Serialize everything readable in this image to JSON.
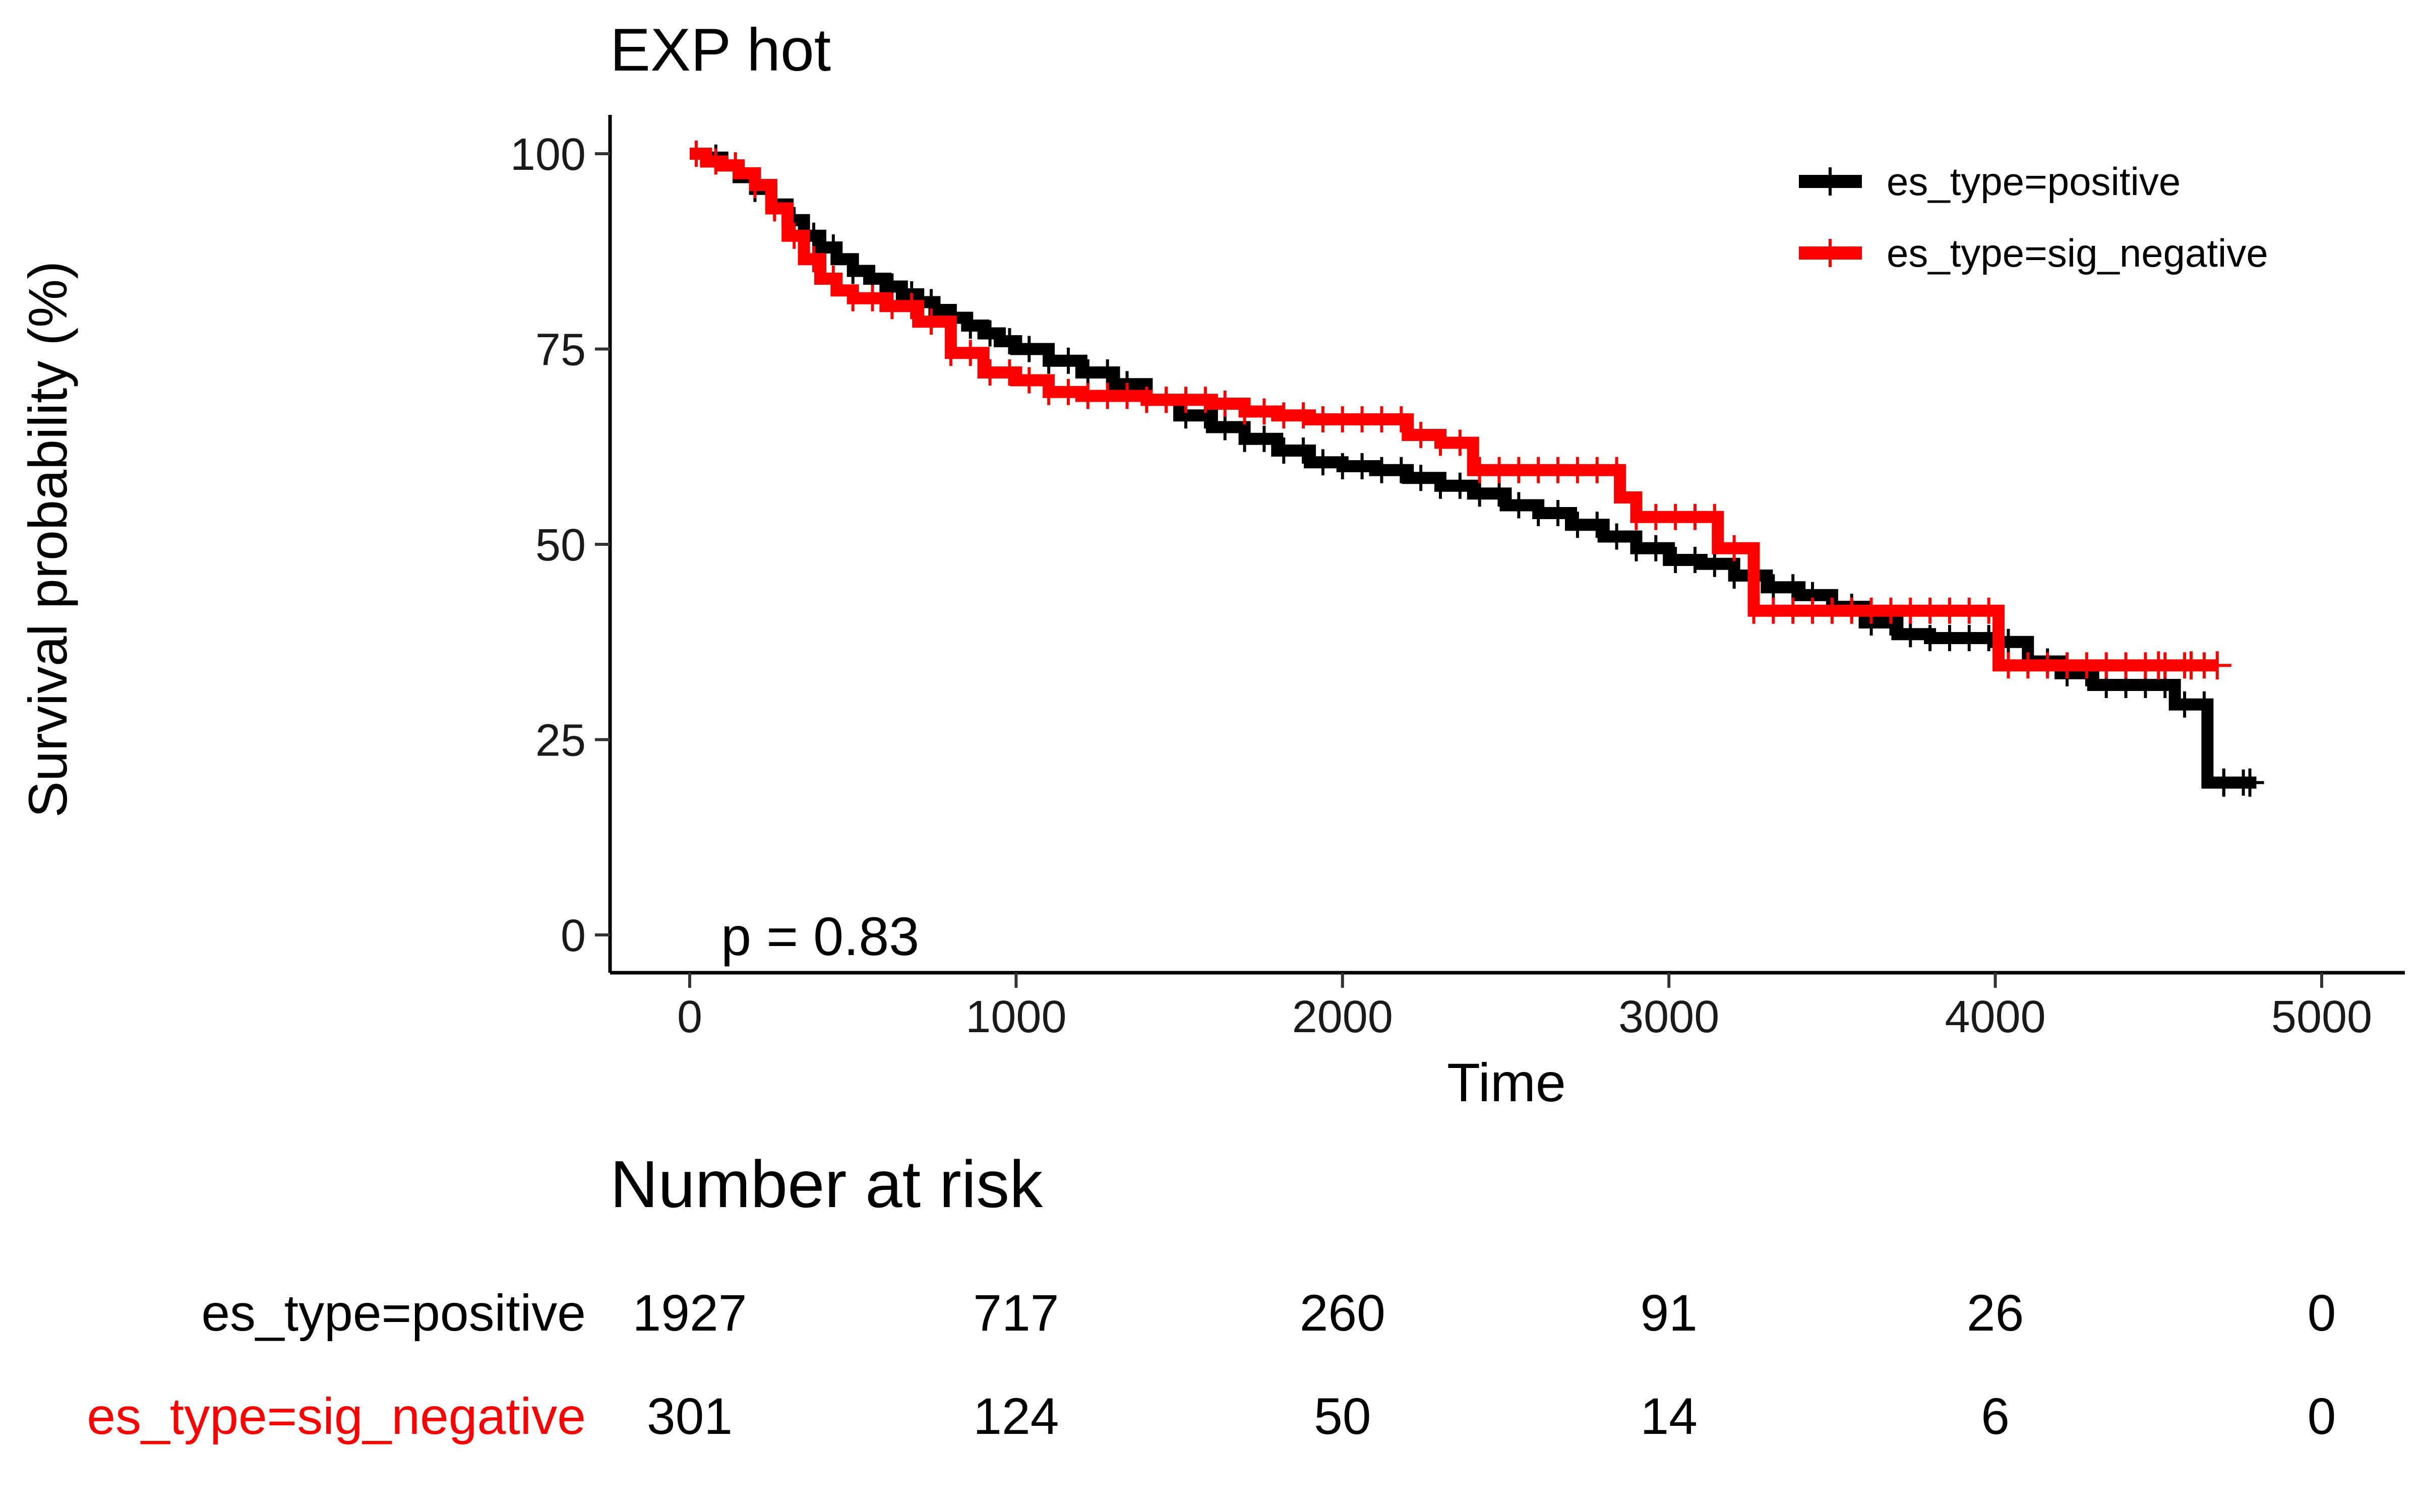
{
  "chart_data": {
    "type": "line",
    "subtype": "kaplan-meier",
    "title": "EXP hot",
    "xlabel": "Time",
    "ylabel": "Survival probability (%)",
    "xlim": [
      0,
      5000
    ],
    "ylim": [
      0,
      100
    ],
    "xticks": [
      0,
      1000,
      2000,
      3000,
      4000,
      5000
    ],
    "yticks": [
      0,
      25,
      50,
      75,
      100
    ],
    "grid": false,
    "legend_position": "top-right",
    "annotation": "p = 0.83",
    "series": [
      {
        "name": "es_type=positive",
        "color": "#000000",
        "x": [
          0,
          50,
          100,
          150,
          200,
          250,
          300,
          350,
          400,
          450,
          500,
          550,
          600,
          650,
          700,
          750,
          800,
          850,
          900,
          950,
          1000,
          1100,
          1200,
          1300,
          1400,
          1500,
          1600,
          1700,
          1800,
          1900,
          2000,
          2100,
          2200,
          2300,
          2400,
          2500,
          2600,
          2700,
          2800,
          2900,
          3000,
          3100,
          3200,
          3300,
          3400,
          3500,
          3600,
          3700,
          3800,
          3900,
          4000,
          4100,
          4200,
          4300,
          4400,
          4500,
          4550,
          4600,
          4650,
          4700,
          4800
        ],
        "y": [
          100,
          99.5,
          98.5,
          97,
          95.5,
          93.5,
          91.5,
          89.5,
          88,
          86.5,
          85,
          84,
          83,
          82,
          81,
          80,
          79,
          78,
          77,
          76,
          75,
          73.5,
          72,
          70.5,
          68.5,
          66.5,
          65,
          63.5,
          62,
          60.5,
          60,
          59.5,
          58.5,
          57.5,
          56.5,
          55,
          54,
          52.5,
          51,
          49.5,
          48,
          47.5,
          46,
          44.5,
          43.5,
          42,
          40,
          38.5,
          38,
          38,
          37.5,
          35,
          33.5,
          32,
          32,
          32,
          29.5,
          29.5,
          19.5,
          19.5,
          19.5
        ],
        "censor_x": [
          4700,
          4780
        ]
      },
      {
        "name": "es_type=sig_negative",
        "color": "#ff0000",
        "x": [
          0,
          50,
          100,
          150,
          200,
          250,
          300,
          350,
          400,
          450,
          500,
          600,
          700,
          800,
          900,
          1000,
          1100,
          1200,
          1300,
          1400,
          1500,
          1600,
          1700,
          1800,
          1900,
          2000,
          2100,
          2200,
          2300,
          2400,
          2500,
          2600,
          2700,
          2800,
          2850,
          2900,
          3000,
          3100,
          3150,
          3260,
          3400,
          3600,
          3800,
          4000,
          4010,
          4200,
          4400,
          4600,
          4680
        ],
        "y": [
          100,
          99,
          98.5,
          97.5,
          96,
          93,
          89.5,
          86.5,
          84,
          82.5,
          81.5,
          80.5,
          78.5,
          74.5,
          72,
          71,
          69.5,
          69,
          69,
          68.5,
          68.5,
          68,
          67,
          66.5,
          66,
          66,
          66,
          64,
          63,
          59.5,
          59.5,
          59.5,
          59.5,
          59.5,
          56,
          53.5,
          53.5,
          53.5,
          49.5,
          41.5,
          41.5,
          41.5,
          41.5,
          41.5,
          34.5,
          34.5,
          34.5,
          34.5,
          34.5
        ],
        "censor_x": [
          4500,
          4600,
          4680
        ]
      }
    ]
  },
  "risk_table": {
    "title": "Number at risk",
    "times": [
      0,
      1000,
      2000,
      3000,
      4000,
      5000
    ],
    "rows": [
      {
        "label": "es_type=positive",
        "color": "#000000",
        "values": [
          "1927",
          "717",
          "260",
          "91",
          "26",
          "0"
        ]
      },
      {
        "label": "es_type=sig_negative",
        "color": "#ff0000",
        "values": [
          "301",
          "124",
          "50",
          "14",
          "6",
          "0"
        ]
      }
    ]
  }
}
